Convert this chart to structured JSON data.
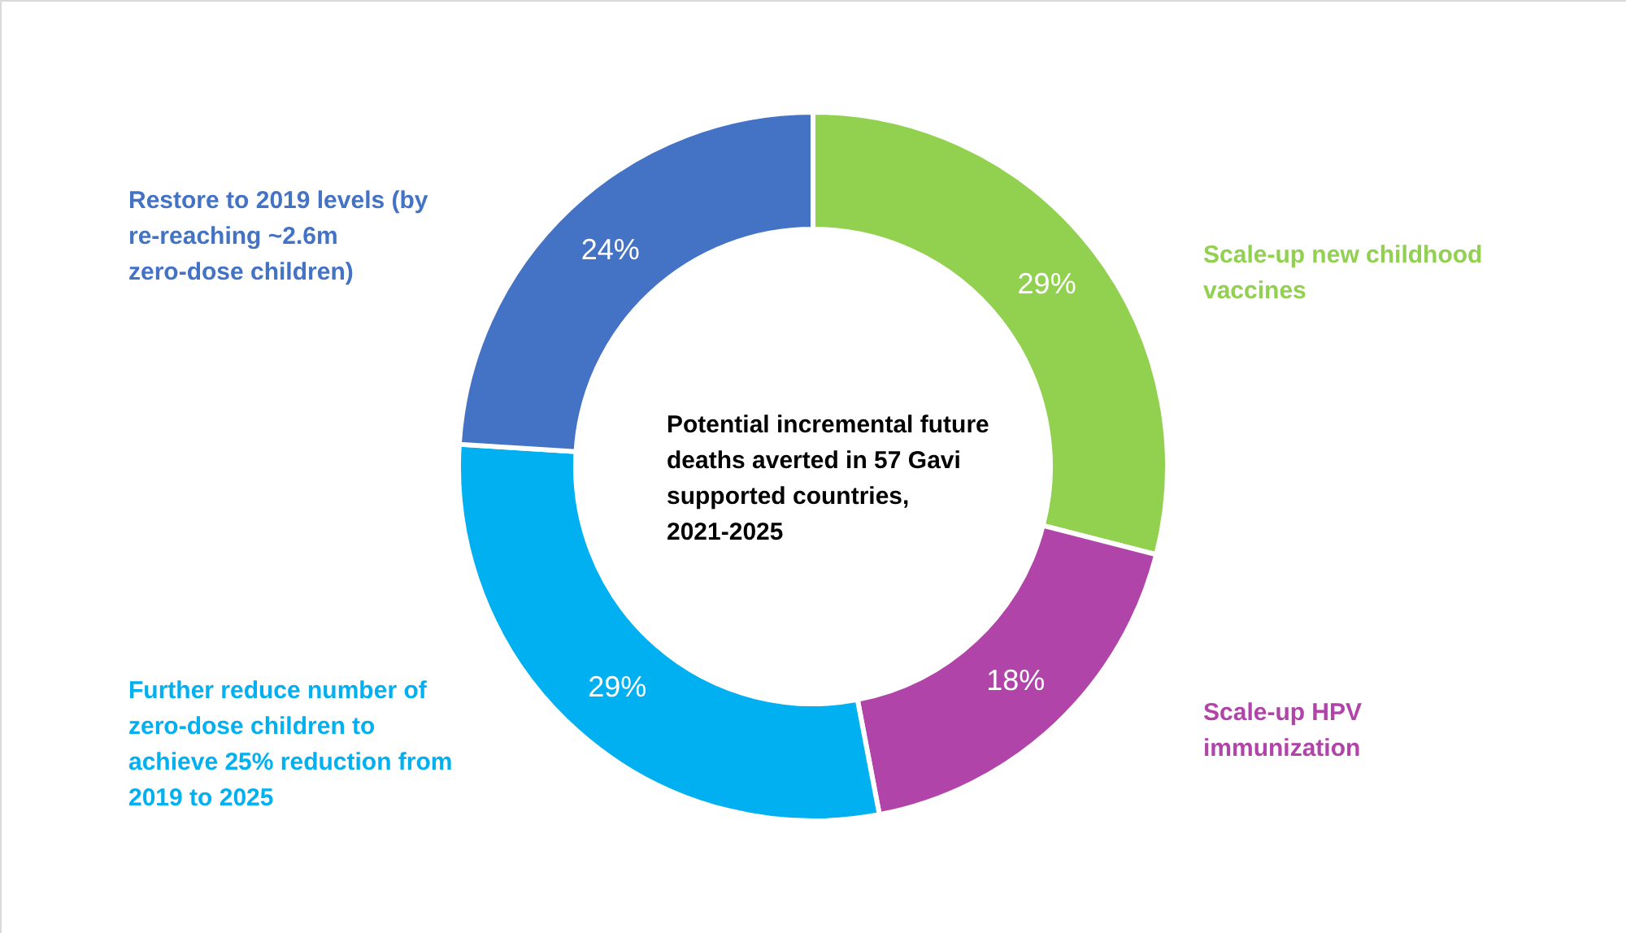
{
  "chart_data": {
    "type": "donut",
    "title": "Potential incremental future deaths averted in 57 Gavi supported countries, 2021-2025",
    "categories": [
      "Scale-up new childhood vaccines",
      "Scale-up HPV immunization",
      "Further reduce number of zero-dose children to achieve 25% reduction from 2019 to 2025",
      "Restore to 2019 levels (by re-reaching ~2.6m zero-dose children)"
    ],
    "values": [
      29,
      18,
      29,
      24
    ],
    "colors": [
      "#92d050",
      "#b044a8",
      "#00b0f0",
      "#4472c4"
    ],
    "value_labels": [
      "29%",
      "18%",
      "29%",
      "24%"
    ]
  }
}
